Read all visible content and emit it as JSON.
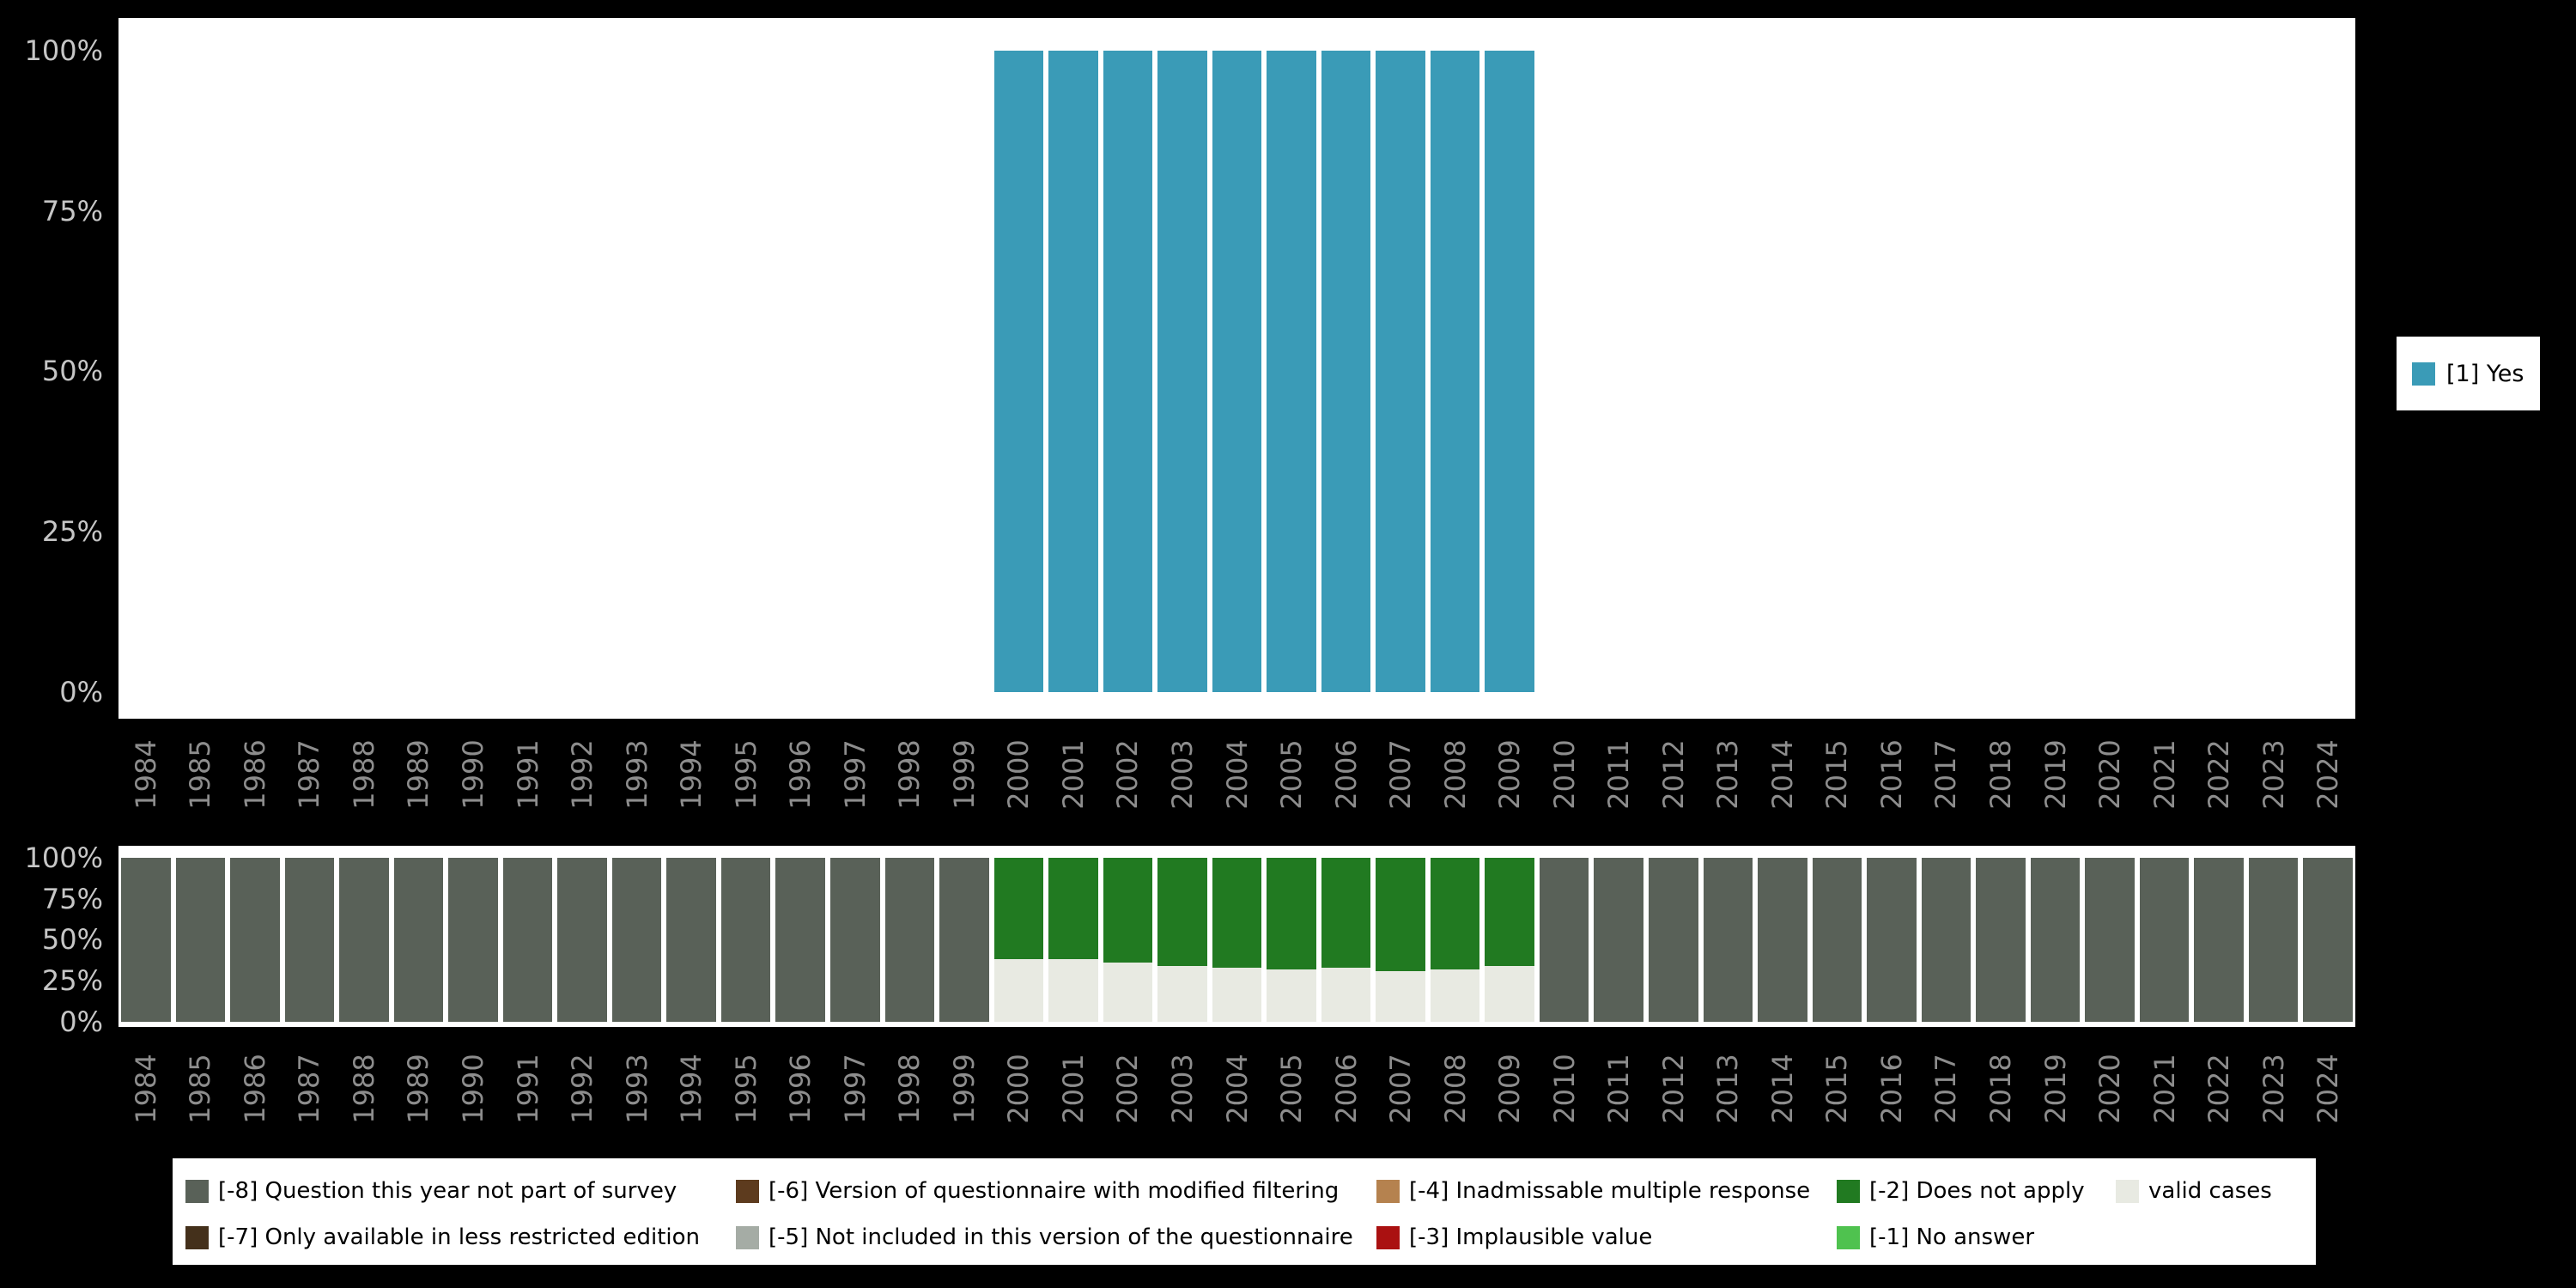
{
  "page": {
    "background": "#000000"
  },
  "legend_right": {
    "label": "[1] Yes",
    "color": "#3a9bb7"
  },
  "legend_bottom": {
    "items": [
      {
        "row": 0,
        "col": 0,
        "key": "question-not-part-of-survey",
        "label": "[-8] Question this year not part of survey",
        "color": "#596158"
      },
      {
        "row": 0,
        "col": 1,
        "key": "modified-filtering",
        "label": "[-6] Version of questionnaire with modified filtering",
        "color": "#5d3b1e"
      },
      {
        "row": 0,
        "col": 2,
        "key": "inadmissable-multiple-response",
        "label": "[-4] Inadmissable multiple response",
        "color": "#b5824f"
      },
      {
        "row": 0,
        "col": 3,
        "key": "does-not-apply",
        "label": "[-2] Does not apply",
        "color": "#217a21"
      },
      {
        "row": 0,
        "col": 4,
        "key": "valid-cases",
        "label": "valid cases",
        "color": "#e8eae2"
      },
      {
        "row": 1,
        "col": 0,
        "key": "less-restricted-edition",
        "label": "[-7] Only available in less restricted edition",
        "color": "#44301b"
      },
      {
        "row": 1,
        "col": 1,
        "key": "not-in-this-version",
        "label": "[-5] Not included in this version of the questionnaire",
        "color": "#a5aca5"
      },
      {
        "row": 1,
        "col": 2,
        "key": "implausible-value",
        "label": "[-3] Implausible value",
        "color": "#aa1111"
      },
      {
        "row": 1,
        "col": 3,
        "key": "no-answer",
        "label": "[-1] No answer",
        "color": "#4fc24f"
      }
    ]
  },
  "chart_data": [
    {
      "type": "bar",
      "title": "",
      "x": [
        "1984",
        "1985",
        "1986",
        "1987",
        "1988",
        "1989",
        "1990",
        "1991",
        "1992",
        "1993",
        "1994",
        "1995",
        "1996",
        "1997",
        "1998",
        "1999",
        "2000",
        "2001",
        "2002",
        "2003",
        "2004",
        "2005",
        "2006",
        "2007",
        "2008",
        "2009",
        "2010",
        "2011",
        "2012",
        "2013",
        "2014",
        "2015",
        "2016",
        "2017",
        "2018",
        "2019",
        "2020",
        "2021",
        "2022",
        "2023",
        "2024"
      ],
      "ylim": [
        0,
        100
      ],
      "yticks": [
        "100%",
        "75%",
        "50%",
        "25%",
        "0%"
      ],
      "grid": false,
      "legend_position": "right",
      "series": [
        {
          "name": "[1] Yes",
          "key": "yes",
          "color": "#3a9bb7",
          "values": [
            0,
            0,
            0,
            0,
            0,
            0,
            0,
            0,
            0,
            0,
            0,
            0,
            0,
            0,
            0,
            0,
            100,
            100,
            100,
            100,
            100,
            100,
            100,
            100,
            100,
            100,
            0,
            0,
            0,
            0,
            0,
            0,
            0,
            0,
            0,
            0,
            0,
            0,
            0,
            0,
            0
          ]
        }
      ]
    },
    {
      "type": "stacked_bar",
      "title": "",
      "x": [
        "1984",
        "1985",
        "1986",
        "1987",
        "1988",
        "1989",
        "1990",
        "1991",
        "1992",
        "1993",
        "1994",
        "1995",
        "1996",
        "1997",
        "1998",
        "1999",
        "2000",
        "2001",
        "2002",
        "2003",
        "2004",
        "2005",
        "2006",
        "2007",
        "2008",
        "2009",
        "2010",
        "2011",
        "2012",
        "2013",
        "2014",
        "2015",
        "2016",
        "2017",
        "2018",
        "2019",
        "2020",
        "2021",
        "2022",
        "2023",
        "2024"
      ],
      "ylim": [
        0,
        100
      ],
      "yticks": [
        "100%",
        "75%",
        "50%",
        "25%",
        "0%"
      ],
      "grid": false,
      "legend_position": "bottom",
      "stack_order": "bottom_to_top",
      "series": [
        {
          "name": "valid cases",
          "key": "valid-cases",
          "color": "#e8eae2",
          "values": [
            0,
            0,
            0,
            0,
            0,
            0,
            0,
            0,
            0,
            0,
            0,
            0,
            0,
            0,
            0,
            0,
            38,
            38,
            36,
            34,
            33,
            32,
            33,
            31,
            32,
            34,
            0,
            0,
            0,
            0,
            0,
            0,
            0,
            0,
            0,
            0,
            0,
            0,
            0,
            0,
            0
          ]
        },
        {
          "name": "[-2] Does not apply",
          "key": "does-not-apply",
          "color": "#217a21",
          "values": [
            0,
            0,
            0,
            0,
            0,
            0,
            0,
            0,
            0,
            0,
            0,
            0,
            0,
            0,
            0,
            0,
            62,
            62,
            64,
            66,
            67,
            68,
            67,
            69,
            68,
            66,
            0,
            0,
            0,
            0,
            0,
            0,
            0,
            0,
            0,
            0,
            0,
            0,
            0,
            0,
            0
          ]
        },
        {
          "name": "[-8] Question this year not part of survey",
          "key": "question-not-part-of-survey",
          "color": "#596158",
          "values": [
            100,
            100,
            100,
            100,
            100,
            100,
            100,
            100,
            100,
            100,
            100,
            100,
            100,
            100,
            100,
            100,
            0,
            0,
            0,
            0,
            0,
            0,
            0,
            0,
            0,
            0,
            100,
            100,
            100,
            100,
            100,
            100,
            100,
            100,
            100,
            100,
            100,
            100,
            100,
            100,
            100
          ]
        }
      ]
    }
  ]
}
